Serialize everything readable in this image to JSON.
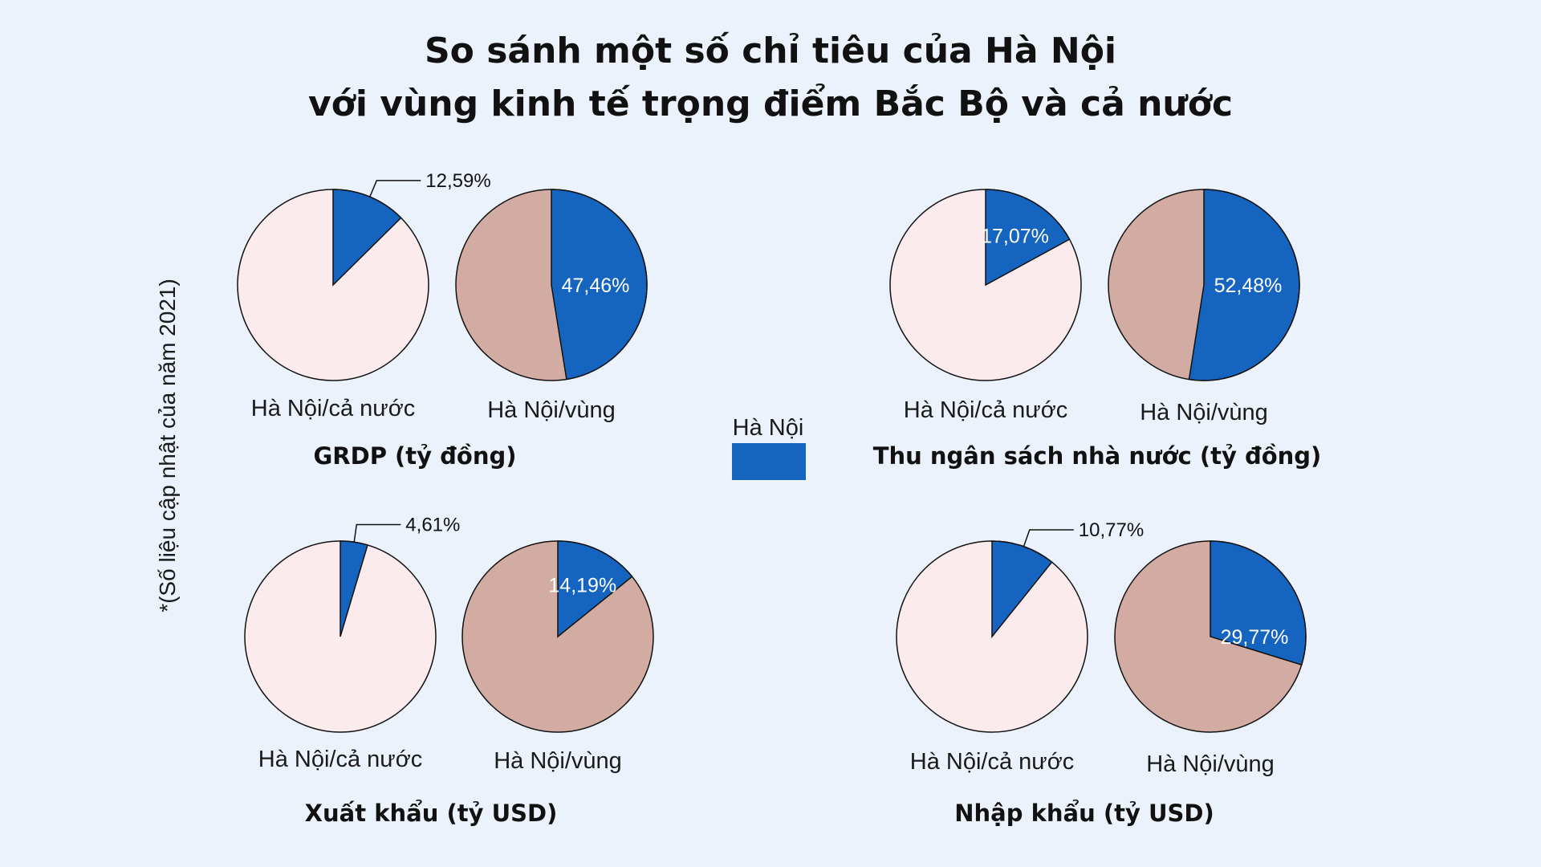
{
  "title": {
    "line1": "So sánh một số chỉ tiêu của Hà Nội",
    "line2": "với vùng kinh tế trọng điểm Bắc Bộ và cả nước"
  },
  "note": "*(Số liệu cập nhật của năm 2021)",
  "legend": {
    "label": "Hà Nội",
    "color": "#1565c0"
  },
  "colors": {
    "highlight": "#1565c0",
    "country_rest": "#fcebed",
    "region_rest": "#d2aca2",
    "outline": "#111111"
  },
  "chart_data": [
    {
      "type": "pie",
      "title": "GRDP (tỷ đồng)",
      "pies": [
        {
          "label": "Hà Nội/cả nước",
          "value": 12.59,
          "value_label": "12,59%"
        },
        {
          "label": "Hà Nội/vùng",
          "value": 47.46,
          "value_label": "47,46%"
        }
      ]
    },
    {
      "type": "pie",
      "title": "Thu ngân sách nhà nước (tỷ đồng)",
      "pies": [
        {
          "label": "Hà Nội/cả nước",
          "value": 17.07,
          "value_label": "17,07%"
        },
        {
          "label": "Hà Nội/vùng",
          "value": 52.48,
          "value_label": "52,48%"
        }
      ]
    },
    {
      "type": "pie",
      "title": "Xuất khẩu (tỷ USD)",
      "pies": [
        {
          "label": "Hà Nội/cả nước",
          "value": 4.61,
          "value_label": "4,61%"
        },
        {
          "label": "Hà Nội/vùng",
          "value": 14.19,
          "value_label": "14,19%"
        }
      ]
    },
    {
      "type": "pie",
      "title": "Nhập khẩu (tỷ USD)",
      "pies": [
        {
          "label": "Hà Nội/cả nước",
          "value": 10.77,
          "value_label": "10,77%"
        },
        {
          "label": "Hà Nội/vùng",
          "value": 29.77,
          "value_label": "29,77%"
        }
      ]
    }
  ]
}
